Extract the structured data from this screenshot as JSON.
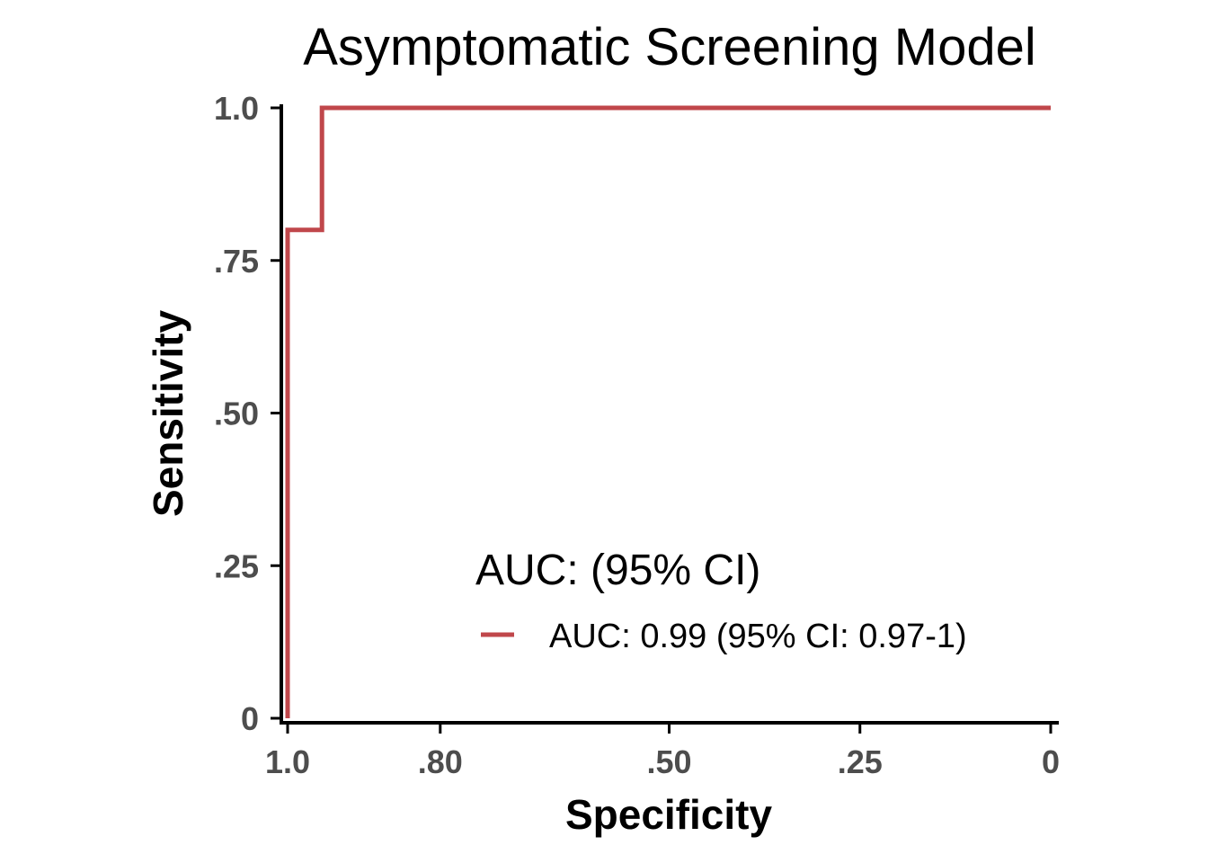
{
  "chart_data": {
    "type": "line",
    "title": "Asymptomatic Screening Model",
    "xlabel": "Specificity",
    "ylabel": "Sensitivity",
    "x_reversed": true,
    "xlim": [
      1.0,
      0
    ],
    "ylim": [
      0,
      1.0
    ],
    "x_ticks": [
      {
        "value": 1.0,
        "label": "1.0"
      },
      {
        "value": 0.8,
        "label": ".80"
      },
      {
        "value": 0.5,
        "label": ".50"
      },
      {
        "value": 0.25,
        "label": ".25"
      },
      {
        "value": 0,
        "label": "0"
      }
    ],
    "y_ticks": [
      {
        "value": 0,
        "label": "0"
      },
      {
        "value": 0.25,
        "label": ".25"
      },
      {
        "value": 0.5,
        "label": ".50"
      },
      {
        "value": 0.75,
        "label": ".75"
      },
      {
        "value": 1.0,
        "label": "1.0"
      }
    ],
    "grid": false,
    "legend": {
      "title": "AUC: (95% CI)",
      "position": "bottom-right"
    },
    "series": [
      {
        "name": "AUC: 0.99 (95% CI: 0.97-1)",
        "color": "#c0474b",
        "step": true,
        "points": [
          {
            "specificity": 1.0,
            "sensitivity": 0
          },
          {
            "specificity": 1.0,
            "sensitivity": 0.8
          },
          {
            "specificity": 0.955,
            "sensitivity": 0.8
          },
          {
            "specificity": 0.955,
            "sensitivity": 1.0
          },
          {
            "specificity": 0,
            "sensitivity": 1.0
          }
        ]
      }
    ]
  }
}
